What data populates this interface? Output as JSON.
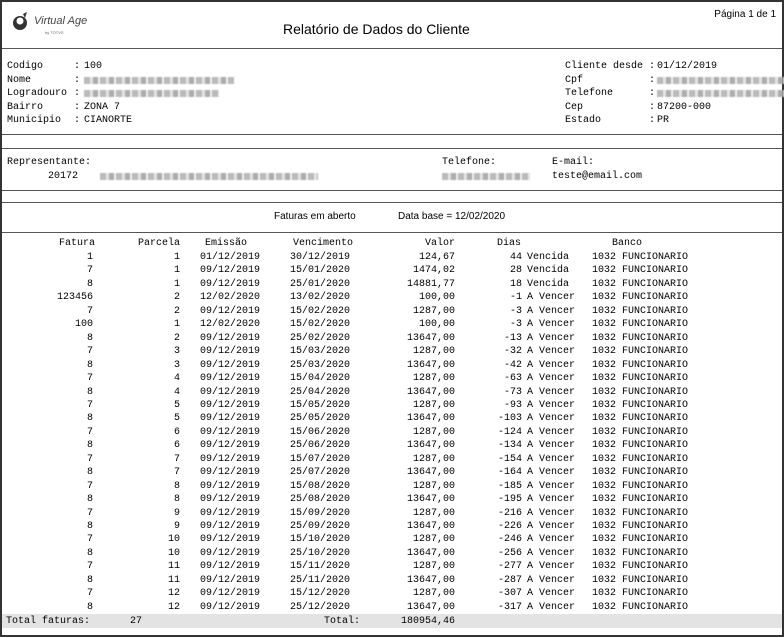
{
  "header": {
    "logo_text": "Virtual Age",
    "logo_subtext": "by TOTVS",
    "title": "Relatório de Dados do Cliente",
    "page_info": "Página 1 de 1"
  },
  "client": {
    "left": [
      {
        "label": "Codigo",
        "value": "100"
      },
      {
        "label": "Nome",
        "value": null
      },
      {
        "label": "Logradouro",
        "value": null
      },
      {
        "label": "Bairro",
        "value": "ZONA 7"
      },
      {
        "label": "Municipio",
        "value": "CIANORTE"
      }
    ],
    "right": [
      {
        "label": "Cliente desde",
        "value": "01/12/2019"
      },
      {
        "label": "Cpf",
        "value": null
      },
      {
        "label": "Telefone",
        "value": null
      },
      {
        "label": "Cep",
        "value": "87200-000"
      },
      {
        "label": "Estado",
        "value": "PR"
      }
    ]
  },
  "representative": {
    "label": "Representante:",
    "code": "20172",
    "phone_label": "Telefone:",
    "email_label": "E-mail:",
    "email": "teste@email.com"
  },
  "invoices": {
    "title": "Faturas em aberto",
    "base_date": "Data base = 12/02/2020",
    "columns": [
      "Fatura",
      "Parcela",
      "Emissão",
      "Vencimento",
      "Valor",
      "Dias",
      "Banco"
    ],
    "rows": [
      [
        "1",
        "1",
        "01/12/2019",
        "30/12/2019",
        "124,67",
        "44",
        "Vencida",
        "1032",
        "FUNCIONARIO"
      ],
      [
        "7",
        "1",
        "09/12/2019",
        "15/01/2020",
        "1474,02",
        "28",
        "Vencida",
        "1032",
        "FUNCIONARIO"
      ],
      [
        "8",
        "1",
        "09/12/2019",
        "25/01/2020",
        "14881,77",
        "18",
        "Vencida",
        "1032",
        "FUNCIONARIO"
      ],
      [
        "123456",
        "2",
        "12/02/2020",
        "13/02/2020",
        "100,00",
        "-1",
        "A Vencer",
        "1032",
        "FUNCIONARIO"
      ],
      [
        "7",
        "2",
        "09/12/2019",
        "15/02/2020",
        "1287,00",
        "-3",
        "A Vencer",
        "1032",
        "FUNCIONARIO"
      ],
      [
        "100",
        "1",
        "12/02/2020",
        "15/02/2020",
        "100,00",
        "-3",
        "A Vencer",
        "1032",
        "FUNCIONARIO"
      ],
      [
        "8",
        "2",
        "09/12/2019",
        "25/02/2020",
        "13647,00",
        "-13",
        "A Vencer",
        "1032",
        "FUNCIONARIO"
      ],
      [
        "7",
        "3",
        "09/12/2019",
        "15/03/2020",
        "1287,00",
        "-32",
        "A Vencer",
        "1032",
        "FUNCIONARIO"
      ],
      [
        "8",
        "3",
        "09/12/2019",
        "25/03/2020",
        "13647,00",
        "-42",
        "A Vencer",
        "1032",
        "FUNCIONARIO"
      ],
      [
        "7",
        "4",
        "09/12/2019",
        "15/04/2020",
        "1287,00",
        "-63",
        "A Vencer",
        "1032",
        "FUNCIONARIO"
      ],
      [
        "8",
        "4",
        "09/12/2019",
        "25/04/2020",
        "13647,00",
        "-73",
        "A Vencer",
        "1032",
        "FUNCIONARIO"
      ],
      [
        "7",
        "5",
        "09/12/2019",
        "15/05/2020",
        "1287,00",
        "-93",
        "A Vencer",
        "1032",
        "FUNCIONARIO"
      ],
      [
        "8",
        "5",
        "09/12/2019",
        "25/05/2020",
        "13647,00",
        "-103",
        "A Vencer",
        "1032",
        "FUNCIONARIO"
      ],
      [
        "7",
        "6",
        "09/12/2019",
        "15/06/2020",
        "1287,00",
        "-124",
        "A Vencer",
        "1032",
        "FUNCIONARIO"
      ],
      [
        "8",
        "6",
        "09/12/2019",
        "25/06/2020",
        "13647,00",
        "-134",
        "A Vencer",
        "1032",
        "FUNCIONARIO"
      ],
      [
        "7",
        "7",
        "09/12/2019",
        "15/07/2020",
        "1287,00",
        "-154",
        "A Vencer",
        "1032",
        "FUNCIONARIO"
      ],
      [
        "8",
        "7",
        "09/12/2019",
        "25/07/2020",
        "13647,00",
        "-164",
        "A Vencer",
        "1032",
        "FUNCIONARIO"
      ],
      [
        "7",
        "8",
        "09/12/2019",
        "15/08/2020",
        "1287,00",
        "-185",
        "A Vencer",
        "1032",
        "FUNCIONARIO"
      ],
      [
        "8",
        "8",
        "09/12/2019",
        "25/08/2020",
        "13647,00",
        "-195",
        "A Vencer",
        "1032",
        "FUNCIONARIO"
      ],
      [
        "7",
        "9",
        "09/12/2019",
        "15/09/2020",
        "1287,00",
        "-216",
        "A Vencer",
        "1032",
        "FUNCIONARIO"
      ],
      [
        "8",
        "9",
        "09/12/2019",
        "25/09/2020",
        "13647,00",
        "-226",
        "A Vencer",
        "1032",
        "FUNCIONARIO"
      ],
      [
        "7",
        "10",
        "09/12/2019",
        "15/10/2020",
        "1287,00",
        "-246",
        "A Vencer",
        "1032",
        "FUNCIONARIO"
      ],
      [
        "8",
        "10",
        "09/12/2019",
        "25/10/2020",
        "13647,00",
        "-256",
        "A Vencer",
        "1032",
        "FUNCIONARIO"
      ],
      [
        "7",
        "11",
        "09/12/2019",
        "15/11/2020",
        "1287,00",
        "-277",
        "A Vencer",
        "1032",
        "FUNCIONARIO"
      ],
      [
        "8",
        "11",
        "09/12/2019",
        "25/11/2020",
        "13647,00",
        "-287",
        "A Vencer",
        "1032",
        "FUNCIONARIO"
      ],
      [
        "7",
        "12",
        "09/12/2019",
        "15/12/2020",
        "1287,00",
        "-307",
        "A Vencer",
        "1032",
        "FUNCIONARIO"
      ],
      [
        "8",
        "12",
        "09/12/2019",
        "25/12/2020",
        "13647,00",
        "-317",
        "A Vencer",
        "1032",
        "FUNCIONARIO"
      ]
    ],
    "total_count_label": "Total faturas:",
    "total_count": "27",
    "total_label": "Total:",
    "total_value": "180954,46"
  }
}
